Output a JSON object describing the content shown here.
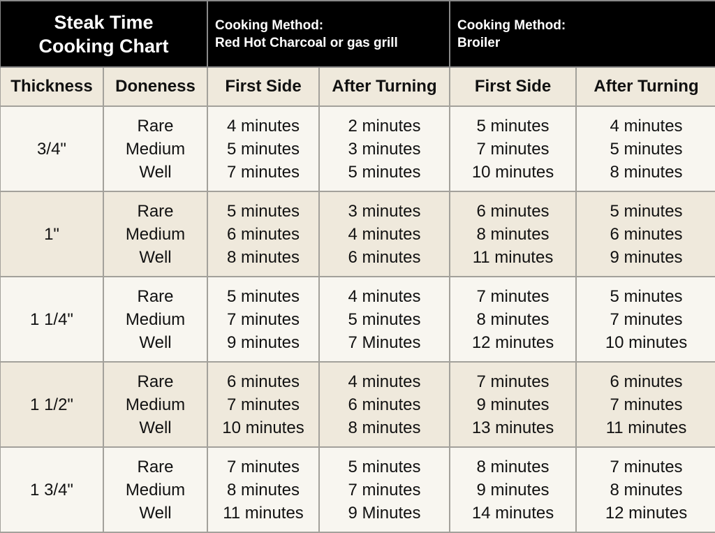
{
  "title": [
    "Steak Time",
    "Cooking Chart"
  ],
  "methods": [
    {
      "label": "Cooking Method:",
      "name": "Red Hot Charcoal or gas grill"
    },
    {
      "label": "Cooking Method:",
      "name": "Broiler"
    }
  ],
  "columns": [
    "Thickness",
    "Doneness",
    "First Side",
    "After Turning",
    "First Side",
    "After Turning"
  ],
  "doneness": [
    "Rare",
    "Medium",
    "Well"
  ],
  "rows": [
    {
      "thickness": "3/4\"",
      "grill_first": [
        "4 minutes",
        "5 minutes",
        "7 minutes"
      ],
      "grill_after": [
        "2 minutes",
        "3 minutes",
        "5 minutes"
      ],
      "broil_first": [
        "5 minutes",
        "7 minutes",
        "10 minutes"
      ],
      "broil_after": [
        "4 minutes",
        "5 minutes",
        "8 minutes"
      ]
    },
    {
      "thickness": "1\"",
      "grill_first": [
        "5 minutes",
        "6 minutes",
        "8 minutes"
      ],
      "grill_after": [
        "3 minutes",
        "4 minutes",
        "6 minutes"
      ],
      "broil_first": [
        "6 minutes",
        "8 minutes",
        "11 minutes"
      ],
      "broil_after": [
        "5 minutes",
        "6 minutes",
        "9 minutes"
      ]
    },
    {
      "thickness": "1 1/4\"",
      "grill_first": [
        "5 minutes",
        "7 minutes",
        "9 minutes"
      ],
      "grill_after": [
        "4 minutes",
        "5 minutes",
        "7 Minutes"
      ],
      "broil_first": [
        "7 minutes",
        "8 minutes",
        "12 minutes"
      ],
      "broil_after": [
        "5 minutes",
        "7 minutes",
        "10 minutes"
      ]
    },
    {
      "thickness": "1 1/2\"",
      "grill_first": [
        "6 minutes",
        "7 minutes",
        "10 minutes"
      ],
      "grill_after": [
        "4 minutes",
        "6 minutes",
        "8 minutes"
      ],
      "broil_first": [
        "7 minutes",
        "9 minutes",
        "13 minutes"
      ],
      "broil_after": [
        "6 minutes",
        "7 minutes",
        "11 minutes"
      ]
    },
    {
      "thickness": "1 3/4\"",
      "grill_first": [
        "7 minutes",
        "8 minutes",
        "11 minutes"
      ],
      "grill_after": [
        "5 minutes",
        "7 minutes",
        "9 Minutes"
      ],
      "broil_first": [
        "8 minutes",
        "9 minutes",
        "14 minutes"
      ],
      "broil_after": [
        "7 minutes",
        "8 minutes",
        "12 minutes"
      ]
    }
  ],
  "colors": {
    "header_bg": "#000000",
    "row_light": "#f8f6f0",
    "row_alt": "#efe9dc",
    "border": "#a3a19b"
  }
}
